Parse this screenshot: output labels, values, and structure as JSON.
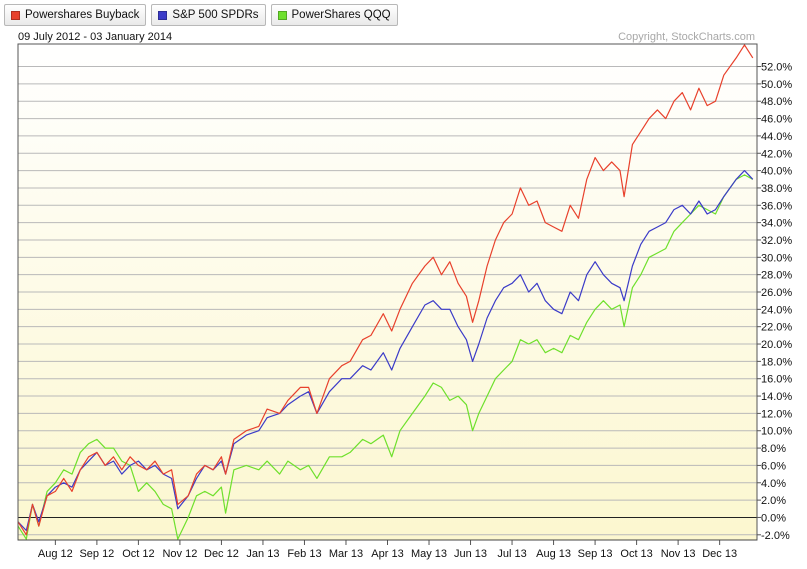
{
  "legend": [
    {
      "label": "Powershares Buyback",
      "color": "#e8412c"
    },
    {
      "label": "S&P 500 SPDRs",
      "color": "#3b3bc8"
    },
    {
      "label": "PowerShares QQQ",
      "color": "#6ee02c"
    }
  ],
  "date_range": "09 July 2012 - 03 January 2014",
  "copyright": "Copyright, StockCharts.com",
  "chart_data": {
    "type": "line",
    "x_unit": "months since 09 July 2012 (x-axis labelled by month)",
    "x_range": [
      0,
      17.8
    ],
    "ylim": [
      -2.6,
      54.6
    ],
    "y_ticks": [
      -2,
      0,
      2,
      4,
      6,
      8,
      10,
      12,
      14,
      16,
      18,
      20,
      22,
      24,
      26,
      28,
      30,
      32,
      34,
      36,
      38,
      40,
      42,
      44,
      46,
      48,
      50,
      52
    ],
    "y_tick_labels": [
      "-2.0%",
      "0.0%",
      "2.0%",
      "4.0%",
      "6.0%",
      "8.0%",
      "10.0%",
      "12.0%",
      "14.0%",
      "16.0%",
      "18.0%",
      "20.0%",
      "22.0%",
      "24.0%",
      "26.0%",
      "28.0%",
      "30.0%",
      "32.0%",
      "34.0%",
      "36.0%",
      "38.0%",
      "40.0%",
      "42.0%",
      "44.0%",
      "46.0%",
      "48.0%",
      "50.0%",
      "52.0%"
    ],
    "x_ticks": [
      {
        "label": "Aug 12",
        "x": 0.9
      },
      {
        "label": "Sep 12",
        "x": 1.9
      },
      {
        "label": "Oct 12",
        "x": 2.9
      },
      {
        "label": "Nov 12",
        "x": 3.9
      },
      {
        "label": "Dec 12",
        "x": 4.9
      },
      {
        "label": "Jan 13",
        "x": 5.9
      },
      {
        "label": "Feb 13",
        "x": 6.9
      },
      {
        "label": "Mar 13",
        "x": 7.9
      },
      {
        "label": "Apr 13",
        "x": 8.9
      },
      {
        "label": "May 13",
        "x": 9.9
      },
      {
        "label": "Jun 13",
        "x": 10.9
      },
      {
        "label": "Jul 13",
        "x": 11.9
      },
      {
        "label": "Aug 13",
        "x": 12.9
      },
      {
        "label": "Sep 13",
        "x": 13.9
      },
      {
        "label": "Oct 13",
        "x": 14.9
      },
      {
        "label": "Nov 13",
        "x": 15.9
      },
      {
        "label": "Dec 13",
        "x": 16.9
      }
    ],
    "series": [
      {
        "name": "Powershares Buyback",
        "color": "#e8412c",
        "points": [
          [
            0,
            -0.5
          ],
          [
            0.2,
            -2
          ],
          [
            0.35,
            1.5
          ],
          [
            0.5,
            -1
          ],
          [
            0.7,
            2.5
          ],
          [
            0.9,
            3
          ],
          [
            1.1,
            4.5
          ],
          [
            1.3,
            3
          ],
          [
            1.5,
            5.5
          ],
          [
            1.7,
            7
          ],
          [
            1.9,
            7.5
          ],
          [
            2.1,
            6
          ],
          [
            2.3,
            7
          ],
          [
            2.5,
            5.5
          ],
          [
            2.7,
            7
          ],
          [
            2.9,
            6
          ],
          [
            3.1,
            5.5
          ],
          [
            3.3,
            6.5
          ],
          [
            3.5,
            5
          ],
          [
            3.7,
            5.5
          ],
          [
            3.85,
            1.5
          ],
          [
            4.1,
            2.5
          ],
          [
            4.3,
            5
          ],
          [
            4.5,
            6
          ],
          [
            4.7,
            5.5
          ],
          [
            4.9,
            7
          ],
          [
            5.0,
            5
          ],
          [
            5.2,
            9
          ],
          [
            5.5,
            10
          ],
          [
            5.8,
            10.5
          ],
          [
            6.0,
            12.5
          ],
          [
            6.3,
            12
          ],
          [
            6.5,
            13.5
          ],
          [
            6.8,
            15
          ],
          [
            7.0,
            15
          ],
          [
            7.2,
            12
          ],
          [
            7.5,
            16
          ],
          [
            7.8,
            17.5
          ],
          [
            8.0,
            18
          ],
          [
            8.3,
            20.5
          ],
          [
            8.5,
            21
          ],
          [
            8.8,
            23.5
          ],
          [
            9.0,
            21.5
          ],
          [
            9.2,
            24
          ],
          [
            9.5,
            27
          ],
          [
            9.8,
            29
          ],
          [
            10.0,
            30
          ],
          [
            10.2,
            28
          ],
          [
            10.4,
            29.5
          ],
          [
            10.6,
            27
          ],
          [
            10.8,
            25.5
          ],
          [
            10.95,
            22.5
          ],
          [
            11.1,
            25
          ],
          [
            11.3,
            29
          ],
          [
            11.5,
            32
          ],
          [
            11.7,
            34
          ],
          [
            11.9,
            35
          ],
          [
            12.1,
            38
          ],
          [
            12.3,
            36
          ],
          [
            12.5,
            36.5
          ],
          [
            12.7,
            34
          ],
          [
            12.9,
            33.5
          ],
          [
            13.1,
            33
          ],
          [
            13.3,
            36
          ],
          [
            13.5,
            34.5
          ],
          [
            13.7,
            39
          ],
          [
            13.9,
            41.5
          ],
          [
            14.1,
            40
          ],
          [
            14.3,
            41
          ],
          [
            14.5,
            40
          ],
          [
            14.6,
            37
          ],
          [
            14.8,
            43
          ],
          [
            15.0,
            44.5
          ],
          [
            15.2,
            46
          ],
          [
            15.4,
            47
          ],
          [
            15.6,
            46
          ],
          [
            15.8,
            48
          ],
          [
            16.0,
            49
          ],
          [
            16.2,
            47
          ],
          [
            16.4,
            49.5
          ],
          [
            16.6,
            47.5
          ],
          [
            16.8,
            48
          ],
          [
            17.0,
            51
          ],
          [
            17.3,
            53
          ],
          [
            17.5,
            54.5
          ],
          [
            17.7,
            53
          ]
        ]
      },
      {
        "name": "S&P 500 SPDRs",
        "color": "#3b3bc8",
        "points": [
          [
            0,
            -0.5
          ],
          [
            0.2,
            -1.5
          ],
          [
            0.35,
            1.5
          ],
          [
            0.5,
            -0.5
          ],
          [
            0.7,
            2.5
          ],
          [
            0.9,
            3.5
          ],
          [
            1.1,
            4
          ],
          [
            1.3,
            3.5
          ],
          [
            1.5,
            5.5
          ],
          [
            1.7,
            6.5
          ],
          [
            1.9,
            7.5
          ],
          [
            2.1,
            6
          ],
          [
            2.3,
            6.5
          ],
          [
            2.5,
            5
          ],
          [
            2.7,
            6
          ],
          [
            2.9,
            6.5
          ],
          [
            3.1,
            5.5
          ],
          [
            3.3,
            6
          ],
          [
            3.5,
            5
          ],
          [
            3.7,
            4.5
          ],
          [
            3.85,
            1
          ],
          [
            4.1,
            2.5
          ],
          [
            4.3,
            4.5
          ],
          [
            4.5,
            6
          ],
          [
            4.7,
            5.5
          ],
          [
            4.9,
            6.5
          ],
          [
            5.0,
            5
          ],
          [
            5.2,
            8.5
          ],
          [
            5.5,
            9.5
          ],
          [
            5.8,
            10
          ],
          [
            6.0,
            11.5
          ],
          [
            6.3,
            12
          ],
          [
            6.5,
            13
          ],
          [
            6.8,
            14
          ],
          [
            7.0,
            14.5
          ],
          [
            7.2,
            12
          ],
          [
            7.5,
            14.5
          ],
          [
            7.8,
            16
          ],
          [
            8.0,
            16
          ],
          [
            8.3,
            17.5
          ],
          [
            8.5,
            17
          ],
          [
            8.8,
            19
          ],
          [
            9.0,
            17
          ],
          [
            9.2,
            19.5
          ],
          [
            9.5,
            22
          ],
          [
            9.8,
            24.5
          ],
          [
            10.0,
            25
          ],
          [
            10.2,
            24
          ],
          [
            10.4,
            24
          ],
          [
            10.6,
            22
          ],
          [
            10.8,
            20.5
          ],
          [
            10.95,
            18
          ],
          [
            11.1,
            20
          ],
          [
            11.3,
            23
          ],
          [
            11.5,
            25
          ],
          [
            11.7,
            26.5
          ],
          [
            11.9,
            27
          ],
          [
            12.1,
            28
          ],
          [
            12.3,
            26
          ],
          [
            12.5,
            27
          ],
          [
            12.7,
            25
          ],
          [
            12.9,
            24
          ],
          [
            13.1,
            23.5
          ],
          [
            13.3,
            26
          ],
          [
            13.5,
            25
          ],
          [
            13.7,
            28
          ],
          [
            13.9,
            29.5
          ],
          [
            14.1,
            28
          ],
          [
            14.3,
            27
          ],
          [
            14.5,
            26.5
          ],
          [
            14.6,
            25
          ],
          [
            14.8,
            29
          ],
          [
            15.0,
            31.5
          ],
          [
            15.2,
            33
          ],
          [
            15.4,
            33.5
          ],
          [
            15.6,
            34
          ],
          [
            15.8,
            35.5
          ],
          [
            16.0,
            36
          ],
          [
            16.2,
            35
          ],
          [
            16.4,
            36.5
          ],
          [
            16.6,
            35
          ],
          [
            16.8,
            35.5
          ],
          [
            17.0,
            37
          ],
          [
            17.3,
            39
          ],
          [
            17.5,
            40
          ],
          [
            17.7,
            39
          ]
        ]
      },
      {
        "name": "PowerShares QQQ",
        "color": "#6ee02c",
        "points": [
          [
            0,
            -1
          ],
          [
            0.2,
            -2.5
          ],
          [
            0.35,
            1.5
          ],
          [
            0.5,
            -1
          ],
          [
            0.7,
            3
          ],
          [
            0.9,
            4
          ],
          [
            1.1,
            5.5
          ],
          [
            1.3,
            5
          ],
          [
            1.5,
            7.5
          ],
          [
            1.7,
            8.5
          ],
          [
            1.9,
            9
          ],
          [
            2.1,
            8
          ],
          [
            2.3,
            8
          ],
          [
            2.5,
            6.5
          ],
          [
            2.7,
            6
          ],
          [
            2.9,
            3
          ],
          [
            3.1,
            4
          ],
          [
            3.3,
            3
          ],
          [
            3.5,
            1.5
          ],
          [
            3.7,
            1
          ],
          [
            3.85,
            -2.5
          ],
          [
            4.1,
            0
          ],
          [
            4.3,
            2.5
          ],
          [
            4.5,
            3
          ],
          [
            4.7,
            2.5
          ],
          [
            4.9,
            3.5
          ],
          [
            5.0,
            0.5
          ],
          [
            5.2,
            5.5
          ],
          [
            5.5,
            6
          ],
          [
            5.8,
            5.5
          ],
          [
            6.0,
            6.5
          ],
          [
            6.3,
            5
          ],
          [
            6.5,
            6.5
          ],
          [
            6.8,
            5.5
          ],
          [
            7.0,
            6
          ],
          [
            7.2,
            4.5
          ],
          [
            7.5,
            7
          ],
          [
            7.8,
            7
          ],
          [
            8.0,
            7.5
          ],
          [
            8.3,
            9
          ],
          [
            8.5,
            8.5
          ],
          [
            8.8,
            9.5
          ],
          [
            9.0,
            7
          ],
          [
            9.2,
            10
          ],
          [
            9.5,
            12
          ],
          [
            9.8,
            14
          ],
          [
            10.0,
            15.5
          ],
          [
            10.2,
            15
          ],
          [
            10.4,
            13.5
          ],
          [
            10.6,
            14
          ],
          [
            10.8,
            13
          ],
          [
            10.95,
            10
          ],
          [
            11.1,
            12
          ],
          [
            11.3,
            14
          ],
          [
            11.5,
            16
          ],
          [
            11.7,
            17
          ],
          [
            11.9,
            18
          ],
          [
            12.1,
            20.5
          ],
          [
            12.3,
            20
          ],
          [
            12.5,
            20.5
          ],
          [
            12.7,
            19
          ],
          [
            12.9,
            19.5
          ],
          [
            13.1,
            19
          ],
          [
            13.3,
            21
          ],
          [
            13.5,
            20.5
          ],
          [
            13.7,
            22.5
          ],
          [
            13.9,
            24
          ],
          [
            14.1,
            25
          ],
          [
            14.3,
            24
          ],
          [
            14.5,
            24.5
          ],
          [
            14.6,
            22
          ],
          [
            14.8,
            26.5
          ],
          [
            15.0,
            28
          ],
          [
            15.2,
            30
          ],
          [
            15.4,
            30.5
          ],
          [
            15.6,
            31
          ],
          [
            15.8,
            33
          ],
          [
            16.0,
            34
          ],
          [
            16.2,
            35
          ],
          [
            16.4,
            36
          ],
          [
            16.6,
            35.5
          ],
          [
            16.8,
            35
          ],
          [
            17.0,
            37
          ],
          [
            17.3,
            39
          ],
          [
            17.5,
            39.5
          ],
          [
            17.7,
            39
          ]
        ]
      }
    ]
  }
}
